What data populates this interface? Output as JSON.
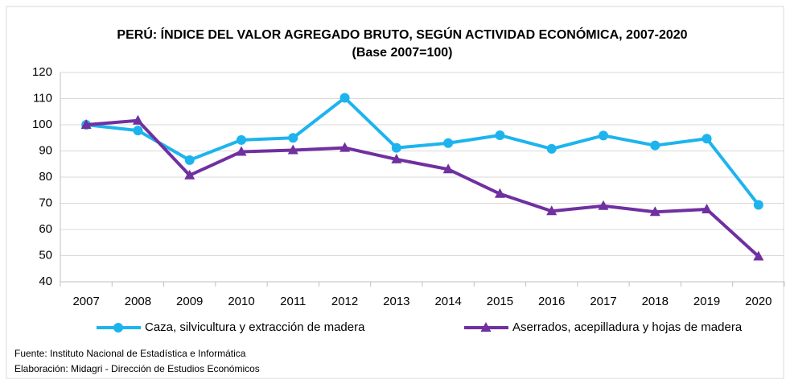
{
  "chart_data": {
    "type": "line",
    "title": "PERÚ: ÍNDICE DEL VALOR AGREGADO BRUTO, SEGÚN ACTIVIDAD ECONÓMICA, 2007-2020",
    "subtitle": "(Base 2007=100)",
    "categories": [
      "2007",
      "2008",
      "2009",
      "2010",
      "2011",
      "2012",
      "2013",
      "2014",
      "2015",
      "2016",
      "2017",
      "2018",
      "2019",
      "2020"
    ],
    "series": [
      {
        "name": "Caza, silvicultura y extracción de madera",
        "color": "#1db4ee",
        "marker": "circle",
        "values": [
          100,
          97.8,
          86.5,
          94.2,
          95,
          110.3,
          91.2,
          93,
          96,
          90.8,
          95.9,
          92.1,
          94.7,
          69.4
        ]
      },
      {
        "name": "Aserrados, acepilladura y hojas de madera",
        "color": "#7030a0",
        "marker": "triangle",
        "values": [
          100,
          101.6,
          80.7,
          89.7,
          90.3,
          91.2,
          86.8,
          83,
          73.6,
          67,
          69,
          66.7,
          67.7,
          49.7
        ]
      }
    ],
    "ylim": [
      40,
      120
    ],
    "yticks": [
      40,
      50,
      60,
      70,
      80,
      90,
      100,
      110,
      120
    ],
    "grid": true,
    "legend": "bottom",
    "notes": [
      "Fuente: Instituto Nacional de Estadística e Informática",
      "Elaboración: Midagri - Dirección de Estudios Económicos"
    ]
  }
}
